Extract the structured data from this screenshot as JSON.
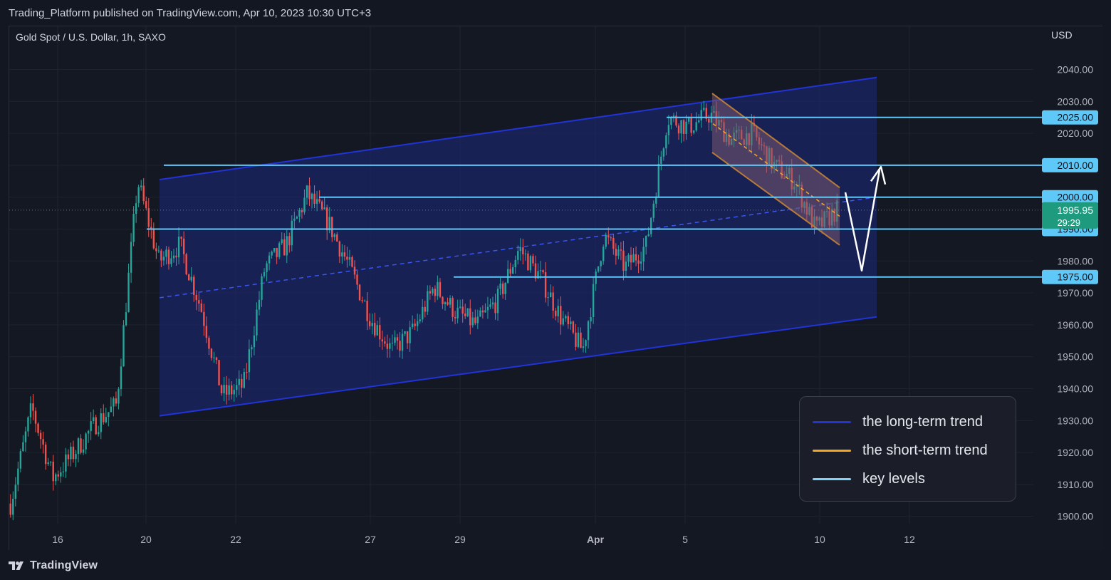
{
  "header": {
    "published_text": "Trading_Platform published on TradingView.com, Apr 10, 2023 10:30 UTC+3"
  },
  "chart_title": "Gold Spot / U.S. Dollar, 1h, SAXO",
  "currency_label": "USD",
  "footer": {
    "brand": "TradingView"
  },
  "colors": {
    "background": "#131722",
    "up_candle": "#26a69a",
    "down_candle": "#ef5350",
    "long_trend": "#2133d9",
    "short_trend": "#f5a623",
    "key_level": "#5ec8f8",
    "current_price": "#1e9b7f"
  },
  "legend": [
    {
      "label": "the long-term trend",
      "color": "#2133d9"
    },
    {
      "label": "the short-term trend",
      "color": "#f5a623"
    },
    {
      "label": "key levels",
      "color": "#7fd3f8"
    }
  ],
  "current_price": {
    "value": "1995.95",
    "countdown": "29:29"
  },
  "chart_data": {
    "type": "candlestick",
    "instrument": "Gold Spot / U.S. Dollar",
    "timeframe": "1h",
    "ylim": [
      1898,
      2048
    ],
    "y_ticks": [
      "1900.00",
      "1910.00",
      "1920.00",
      "1930.00",
      "1940.00",
      "1950.00",
      "1960.00",
      "1970.00",
      "1980.00",
      "1990.00",
      "2000.00",
      "2010.00",
      "2020.00",
      "2030.00",
      "2040.00"
    ],
    "x_ticks": [
      "16",
      "20",
      "22",
      "27",
      "29",
      "Apr",
      "5",
      "10",
      "12"
    ],
    "key_levels": [
      {
        "label": "2025.00",
        "value": 2025,
        "from_session": 5
      },
      {
        "label": "2010.00",
        "value": 2010,
        "from_session": 1
      },
      {
        "label": "2000.00",
        "value": 2000,
        "from_session": 3
      },
      {
        "label": "1990.00",
        "value": 1990,
        "from_session": 1
      },
      {
        "label": "1975.00",
        "value": 1975,
        "from_session": 3
      }
    ],
    "closes": [
      {
        "x": "15",
        "y": 1904
      },
      {
        "x": "15",
        "y": 1934
      },
      {
        "x": "16",
        "y": 1912
      },
      {
        "x": "16",
        "y": 1920
      },
      {
        "x": "17",
        "y": 1929
      },
      {
        "x": "17",
        "y": 1935
      },
      {
        "x": "20",
        "y": 2005
      },
      {
        "x": "20",
        "y": 1980
      },
      {
        "x": "21",
        "y": 1985
      },
      {
        "x": "21",
        "y": 1965
      },
      {
        "x": "22",
        "y": 1938
      },
      {
        "x": "22",
        "y": 1941
      },
      {
        "x": "23",
        "y": 1978
      },
      {
        "x": "23",
        "y": 1985
      },
      {
        "x": "24",
        "y": 2001
      },
      {
        "x": "24",
        "y": 1992
      },
      {
        "x": "27",
        "y": 1978
      },
      {
        "x": "27",
        "y": 1962
      },
      {
        "x": "28",
        "y": 1952
      },
      {
        "x": "28",
        "y": 1958
      },
      {
        "x": "29",
        "y": 1972
      },
      {
        "x": "29",
        "y": 1964
      },
      {
        "x": "30",
        "y": 1960
      },
      {
        "x": "30",
        "y": 1968
      },
      {
        "x": "31",
        "y": 1984
      },
      {
        "x": "31",
        "y": 1975
      },
      {
        "x": "Apr",
        "y": 1962
      },
      {
        "x": "Apr",
        "y": 1952
      },
      {
        "x": "3",
        "y": 1988
      },
      {
        "x": "3",
        "y": 1978
      },
      {
        "x": "4",
        "y": 1985
      },
      {
        "x": "4",
        "y": 2025
      },
      {
        "x": "5",
        "y": 2022
      },
      {
        "x": "5",
        "y": 2026
      },
      {
        "x": "6",
        "y": 2018
      },
      {
        "x": "6",
        "y": 2020
      },
      {
        "x": "7",
        "y": 2010
      },
      {
        "x": "7",
        "y": 2005
      },
      {
        "x": "10",
        "y": 1990
      },
      {
        "x": "10",
        "y": 1995.95
      }
    ],
    "long_term_channel": {
      "upper": [
        [
          "20",
          2005
        ],
        [
          "12",
          2040
        ]
      ],
      "lower": [
        [
          "20",
          1931
        ],
        [
          "12",
          1962
        ]
      ]
    },
    "short_term_channel": {
      "upper": [
        [
          "6",
          2030
        ],
        [
          "10",
          2002
        ]
      ],
      "lower": [
        [
          "6",
          2014
        ],
        [
          "10",
          1985
        ]
      ]
    },
    "projection": [
      2002,
      1976,
      2010
    ]
  }
}
